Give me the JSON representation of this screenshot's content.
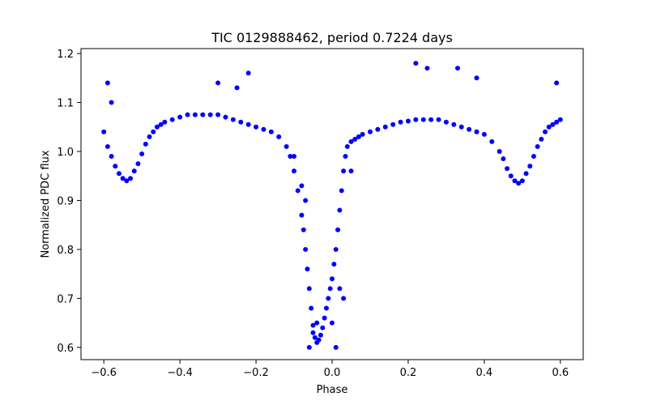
{
  "chart_data": {
    "type": "scatter",
    "title": "TIC 0129888462, period 0.7224 days",
    "xlabel": "Phase",
    "ylabel": "Normalized PDC flux",
    "xlim": [
      -0.66,
      0.66
    ],
    "ylim": [
      0.575,
      1.21
    ],
    "xticks": [
      -0.6,
      -0.4,
      -0.2,
      0.0,
      0.2,
      0.4,
      0.6
    ],
    "xtick_labels": [
      "−0.6",
      "−0.4",
      "−0.2",
      "0.0",
      "0.2",
      "0.4",
      "0.6"
    ],
    "yticks": [
      0.6,
      0.7,
      0.8,
      0.9,
      1.0,
      1.1,
      1.2
    ],
    "ytick_labels": [
      "0.6",
      "0.7",
      "0.8",
      "0.9",
      "1.0",
      "1.1",
      "1.2"
    ],
    "grid": false,
    "legend": "none",
    "marker_color": "#0000ff",
    "series": [
      {
        "x": [
          -0.6,
          -0.59,
          -0.58,
          -0.57,
          -0.56,
          -0.55,
          -0.54,
          -0.53,
          -0.52,
          -0.51,
          -0.5,
          -0.49,
          -0.48,
          -0.47,
          -0.46,
          -0.45,
          -0.44,
          -0.42,
          -0.4,
          -0.38,
          -0.36,
          -0.34,
          -0.32,
          -0.3,
          -0.28,
          -0.26,
          -0.24,
          -0.22,
          -0.2,
          -0.18,
          -0.16,
          -0.14,
          -0.12,
          -0.11,
          -0.1,
          -0.09,
          -0.08,
          -0.075,
          -0.07,
          -0.065,
          -0.06,
          -0.055,
          -0.05,
          -0.045,
          -0.04,
          -0.035,
          -0.03,
          -0.025,
          -0.02,
          -0.015,
          -0.01,
          -0.005,
          0.0,
          0.005,
          0.01,
          0.015,
          0.02,
          0.025,
          0.03,
          0.035,
          0.04,
          0.05,
          0.06,
          0.07,
          0.08,
          0.1,
          0.12,
          0.14,
          0.16,
          0.18,
          0.2,
          0.22,
          0.24,
          0.26,
          0.28,
          0.3,
          0.32,
          0.34,
          0.36,
          0.38,
          0.4,
          0.42,
          0.44,
          0.45,
          0.46,
          0.47,
          0.48,
          0.49,
          0.5,
          0.51,
          0.52,
          0.53,
          0.54,
          0.55,
          0.56,
          0.57,
          0.58,
          0.59,
          0.6,
          -0.59,
          -0.58,
          -0.3,
          -0.25,
          -0.22,
          -0.06,
          -0.05,
          -0.04,
          0.02,
          0.03,
          0.22,
          0.25,
          0.33,
          0.38,
          0.59,
          -0.08,
          -0.07,
          0.0,
          0.01,
          -0.1,
          0.05
        ],
        "y": [
          1.04,
          1.01,
          0.99,
          0.97,
          0.955,
          0.945,
          0.94,
          0.945,
          0.96,
          0.975,
          0.995,
          1.015,
          1.03,
          1.04,
          1.05,
          1.055,
          1.06,
          1.065,
          1.07,
          1.075,
          1.075,
          1.075,
          1.075,
          1.075,
          1.07,
          1.065,
          1.06,
          1.055,
          1.05,
          1.045,
          1.04,
          1.03,
          1.01,
          0.99,
          0.96,
          0.92,
          0.87,
          0.84,
          0.8,
          0.76,
          0.72,
          0.68,
          0.645,
          0.62,
          0.61,
          0.615,
          0.625,
          0.64,
          0.66,
          0.68,
          0.7,
          0.72,
          0.74,
          0.77,
          0.8,
          0.84,
          0.88,
          0.92,
          0.96,
          0.99,
          1.01,
          1.02,
          1.025,
          1.03,
          1.035,
          1.04,
          1.045,
          1.05,
          1.055,
          1.06,
          1.062,
          1.065,
          1.065,
          1.065,
          1.065,
          1.06,
          1.055,
          1.05,
          1.045,
          1.04,
          1.035,
          1.02,
          1.0,
          0.985,
          0.965,
          0.95,
          0.94,
          0.935,
          0.94,
          0.955,
          0.97,
          0.99,
          1.01,
          1.025,
          1.04,
          1.05,
          1.055,
          1.06,
          1.065,
          1.14,
          1.1,
          1.14,
          1.13,
          1.16,
          0.6,
          0.63,
          0.65,
          0.72,
          0.7,
          1.18,
          1.17,
          1.17,
          1.15,
          1.14,
          0.93,
          0.9,
          0.65,
          0.6,
          0.99,
          0.96
        ]
      }
    ]
  }
}
